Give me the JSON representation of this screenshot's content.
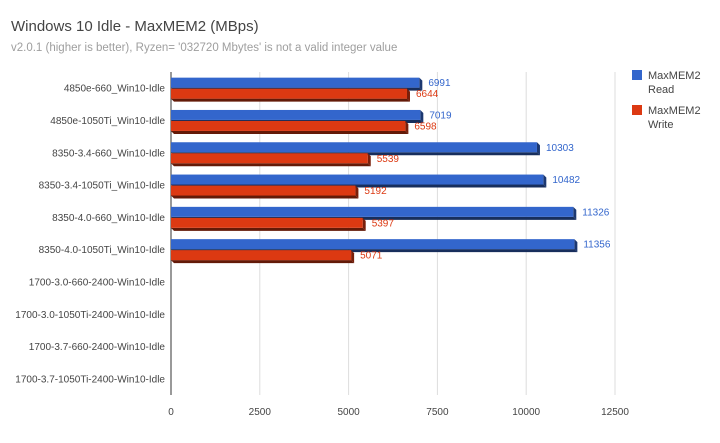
{
  "chart_data": {
    "type": "bar",
    "orientation": "horizontal",
    "title": "Windows 10 Idle - MaxMEM2 (MBps)",
    "subtitle": "v2.0.1 (higher is better),  Ryzen= '032720 Mbytes' is not a valid integer value",
    "categories": [
      "4850e-660_Win10-Idle",
      "4850e-1050Ti_Win10-Idle",
      "8350-3.4-660_Win10-Idle",
      "8350-3.4-1050Ti_Win10-Idle",
      "8350-4.0-660_Win10-Idle",
      "8350-4.0-1050Ti_Win10-Idle",
      "1700-3.0-660-2400-Win10-Idle",
      "1700-3.0-1050Ti-2400-Win10-Idle",
      "1700-3.7-660-2400-Win10-Idle",
      "1700-3.7-1050Ti-2400-Win10-Idle"
    ],
    "series": [
      {
        "name": "MaxMEM2 Read",
        "color": "#3366cc",
        "values": [
          6991,
          7019,
          10303,
          10482,
          11326,
          11356,
          null,
          null,
          null,
          null
        ]
      },
      {
        "name": "MaxMEM2 Write",
        "color": "#dc3912",
        "values": [
          6644,
          6598,
          5539,
          5192,
          5397,
          5071,
          null,
          null,
          null,
          null
        ]
      }
    ],
    "xlim": [
      0,
      12500
    ],
    "xticks": [
      0,
      2500,
      5000,
      7500,
      10000,
      12500
    ],
    "xlabel": "",
    "ylabel": "",
    "grid": true,
    "legend": {
      "placement": "right",
      "entries": [
        "MaxMEM2 Read",
        "MaxMEM2 Write"
      ]
    }
  }
}
